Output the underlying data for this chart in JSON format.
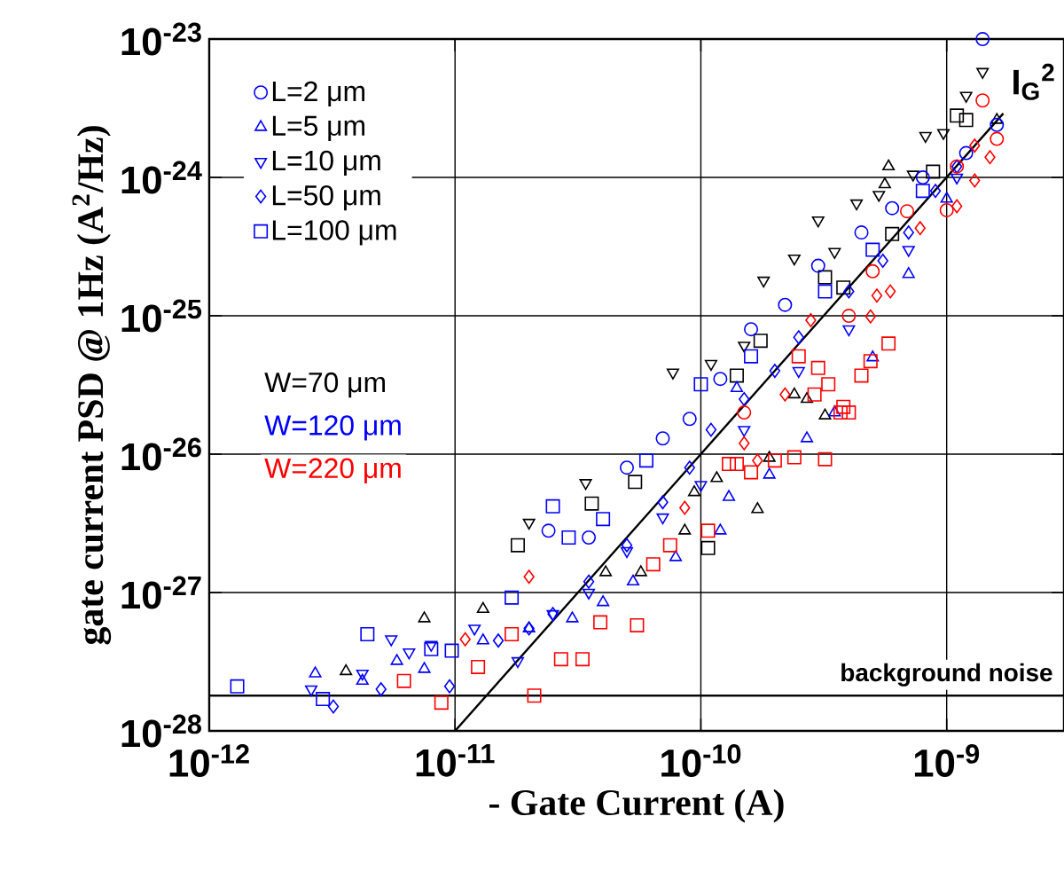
{
  "chart_data": {
    "type": "scatter",
    "xlabel": "- Gate Current (A)",
    "ylabel": "gate current PSD @ 1Hz (A$^{2}$/Hz)",
    "log": "xy",
    "grid": true,
    "legend": "top left",
    "xlim": [
      1e-12,
      3e-09
    ],
    "ylim": [
      1e-28,
      1e-23
    ],
    "xticks": [
      {
        "value": 1e-12,
        "label": "10$^{-12}$"
      },
      {
        "value": 1e-11,
        "label": "10$^{-11}$"
      },
      {
        "value": 1e-10,
        "label": "10$^{-10}$"
      },
      {
        "value": 1e-09,
        "label": "10$^{-9}$"
      }
    ],
    "yticks": [
      {
        "value": 1e-28,
        "label": "10$^{-28}$"
      },
      {
        "value": 1e-27,
        "label": "10$^{-27}$"
      },
      {
        "value": 1e-26,
        "label": "10$^{-26}$"
      },
      {
        "value": 1e-25,
        "label": "10$^{-25}$"
      },
      {
        "value": 1e-24,
        "label": "10$^{-24}$"
      },
      {
        "value": 1e-23,
        "label": "10$^{-23}$"
      }
    ],
    "annotations": [
      "W=70 μm",
      "W=120 μm",
      "W=220 μm",
      "I$_{G}$$^{2}$"
    ],
    "ref_lines": [
      {
        "axis": "y",
        "value": 1.8e-28,
        "label": "background noise",
        "color": "#000000",
        "line_style": "solid"
      }
    ],
    "series": [
      {
        "color": "#000000",
        "marker": "triangle-down",
        "x": [
          2e-11,
          3.4e-11,
          7.7e-11,
          1.1e-10,
          1.5e-10,
          1.8e-10,
          2.4e-10,
          3e-10,
          3.5e-10,
          4.3e-10,
          5.3e-10,
          7.3e-10,
          8.2e-10,
          9.7e-10,
          1.2e-09,
          1.4e-09
        ],
        "values": [
          3.2e-27,
          6.2e-27,
          3.9e-26,
          4.5e-26,
          6.1e-26,
          1.8e-25,
          2.6e-25,
          4.9e-25,
          2.9e-25,
          6.5e-25,
          7.5e-25,
          1.05e-24,
          2e-24,
          2.1e-24,
          3.9e-24,
          5.8e-24
        ]
      },
      {
        "color": "#000000",
        "marker": "square",
        "x": [
          1.8e-11,
          3.6e-11,
          5.4e-11,
          1.07e-10,
          1.4e-10,
          1.75e-10,
          3.2e-10,
          3.8e-10,
          6e-10,
          8.8e-10,
          1.1e-09,
          1.2e-09
        ],
        "values": [
          2.2e-27,
          4.4e-27,
          6.3e-27,
          2.1e-27,
          3.7e-26,
          6.6e-26,
          1.9e-25,
          1.6e-25,
          3.9e-25,
          1.1e-24,
          2.8e-24,
          2.6e-24
        ]
      },
      {
        "color": "#000000",
        "marker": "triangle",
        "x": [
          3.6e-12,
          7.5e-12,
          1.3e-11,
          4.1e-11,
          5.7e-11,
          8.6e-11,
          9.4e-11,
          1.16e-10,
          1.7e-10,
          1.9e-10,
          2.4e-10,
          2.7e-10,
          3.2e-10,
          5.6e-10,
          5.8e-10,
          1.6e-09
        ],
        "values": [
          2.7e-28,
          6.5e-28,
          7.6e-28,
          1.4e-27,
          1.4e-27,
          2.8e-27,
          5.3e-27,
          6.7e-27,
          4e-27,
          9.4e-27,
          2.7e-26,
          2.5e-26,
          1.9e-26,
          8.9e-25,
          1.2e-24,
          2.6e-24
        ]
      },
      {
        "name": "L=2 μm",
        "color": "#0000ff",
        "marker": "circle",
        "x": [
          2.4e-11,
          3.5e-11,
          5e-11,
          7e-11,
          9e-11,
          1.2e-10,
          1.6e-10,
          2.2e-10,
          3e-10,
          4.5e-10,
          6e-10,
          8e-10,
          1.2e-09,
          1.4e-09,
          1.6e-09
        ],
        "values": [
          2.8e-27,
          2.5e-27,
          8e-27,
          1.3e-26,
          1.8e-26,
          3.5e-26,
          8e-26,
          1.2e-25,
          2.3e-25,
          4e-25,
          6e-25,
          1e-24,
          1.5e-24,
          1e-23,
          2.4e-24
        ]
      },
      {
        "name": "L=5 μm",
        "color": "#0000ff",
        "marker": "triangle",
        "x": [
          2.7e-12,
          4.2e-12,
          5.8e-12,
          7.5e-12,
          1.3e-11,
          2e-11,
          3e-11,
          4e-11,
          5.3e-11,
          7.9e-11,
          1.2e-10,
          1.3e-10,
          1.9e-10,
          1.4e-10,
          2.7e-10,
          3.5e-10,
          5e-10,
          7e-10,
          1e-09
        ],
        "values": [
          2.6e-28,
          2.3e-28,
          3.2e-28,
          2.8e-28,
          4.5e-28,
          5.5e-28,
          6.5e-28,
          8.5e-28,
          1.2e-27,
          1.8e-27,
          2.8e-27,
          4.9e-27,
          7.1e-27,
          3e-26,
          1.3e-26,
          2e-26,
          5e-26,
          2e-25,
          7e-25
        ]
      },
      {
        "name": "L=10 μm",
        "color": "#0000ff",
        "marker": "triangle-down",
        "x": [
          2.6e-12,
          4.2e-12,
          5.5e-12,
          6.5e-12,
          8e-12,
          1.2e-11,
          1.8e-11,
          2.5e-11,
          3.5e-11,
          5e-11,
          7e-11,
          1e-10,
          1.5e-10,
          2.5e-10,
          4e-10,
          7e-10,
          1.1e-09
        ],
        "values": [
          2e-28,
          2.6e-28,
          4.6e-28,
          3.7e-28,
          4.2e-28,
          5.5e-28,
          3.2e-28,
          7e-28,
          1e-27,
          2e-27,
          3.5e-27,
          6e-27,
          1.5e-26,
          4e-26,
          8e-26,
          3e-25,
          1e-24
        ]
      },
      {
        "name": "L=50 μm",
        "color": "#0000ff",
        "marker": "diamond",
        "x": [
          3.2e-12,
          5e-12,
          9.5e-12,
          1.5e-11,
          2e-11,
          2.5e-11,
          3.5e-11,
          5e-11,
          7e-11,
          9e-11,
          1.1e-10,
          1.5e-10,
          2e-10,
          2.5e-10,
          4e-10,
          5.5e-10,
          7e-10,
          9e-10,
          1.1e-09
        ],
        "values": [
          1.5e-28,
          2e-28,
          2.1e-28,
          4.5e-28,
          5.5e-28,
          7e-28,
          1.2e-27,
          2.2e-27,
          4.5e-27,
          8e-27,
          1.5e-26,
          2.5e-26,
          4e-26,
          7e-26,
          1.5e-25,
          2.5e-25,
          4e-25,
          8e-25,
          1.2e-24
        ]
      },
      {
        "name": "L=100 μm",
        "color": "#0000ff",
        "marker": "square",
        "x": [
          1.3e-12,
          2.9e-12,
          4.4e-12,
          8e-12,
          9.7e-12,
          1.7e-11,
          2.5e-11,
          2.9e-11,
          4e-11,
          6e-11,
          1e-10,
          1.6e-10,
          3.2e-10,
          5e-10,
          8e-10
        ],
        "values": [
          2.1e-28,
          1.7e-28,
          5e-28,
          3.9e-28,
          3.8e-28,
          9.2e-28,
          4.2e-27,
          2.5e-27,
          3.4e-27,
          9e-27,
          3.2e-26,
          5.1e-26,
          1.5e-25,
          3e-25,
          8e-25
        ]
      },
      {
        "color": "#ff0000",
        "marker": "square",
        "x": [
          6.2e-12,
          8.8e-12,
          1.24e-11,
          1.7e-11,
          2.1e-11,
          2.7e-11,
          3.3e-11,
          3.9e-11,
          5.5e-11,
          6.4e-11,
          7.5e-11,
          1.07e-10,
          1.3e-10,
          1.4e-10,
          1.6e-10,
          2e-10,
          2.4e-10,
          3.2e-10,
          2.9e-10,
          3.7e-10,
          4e-10,
          5.8e-10,
          4.9e-10,
          4.5e-10,
          3e-10,
          3.3e-10,
          3.8e-10,
          2.5e-10
        ],
        "values": [
          2.3e-28,
          1.6e-28,
          2.9e-28,
          5e-28,
          1.8e-28,
          3.3e-28,
          3.3e-28,
          6.1e-28,
          5.8e-28,
          1.6e-27,
          2.2e-27,
          2.8e-27,
          8.5e-27,
          8.5e-27,
          7.4e-27,
          9e-27,
          9.5e-27,
          9.2e-27,
          2.7e-26,
          2e-26,
          2e-26,
          6.3e-26,
          4.7e-26,
          3.7e-26,
          4.2e-26,
          3.2e-26,
          2.2e-26,
          5.1e-26
        ]
      },
      {
        "color": "#ff0000",
        "marker": "diamond",
        "x": [
          1.1e-11,
          2e-11,
          8.6e-11,
          1.5e-10,
          1.7e-10,
          2.2e-10,
          2.8e-10,
          4.9e-10,
          5.2e-10,
          5.9e-10,
          7.8e-10,
          1.1e-09,
          1.3e-09,
          1.3e-09,
          1.5e-09
        ],
        "values": [
          4.6e-28,
          1.3e-27,
          4.1e-27,
          1.2e-26,
          9e-27,
          2.7e-26,
          9.3e-26,
          9.9e-26,
          1.4e-25,
          1.5e-25,
          4.3e-25,
          6.2e-25,
          9.5e-25,
          1.7e-24,
          1.4e-24
        ]
      },
      {
        "color": "#ff0000",
        "marker": "circle",
        "x": [
          1.5e-10,
          4e-10,
          5e-10,
          6.9e-10,
          1e-09,
          1.1e-09,
          1.4e-09,
          1.6e-09
        ],
        "values": [
          2e-26,
          1e-25,
          2.1e-25,
          5.7e-25,
          5.8e-25,
          1.2e-24,
          3.6e-24,
          1.9e-24
        ]
      },
      {
        "type": "line",
        "color": "#000000",
        "marker": "none",
        "line_style": "solid",
        "x": [
          1e-11,
          1.7e-09
        ],
        "values": [
          1e-28,
          2.9e-24
        ]
      }
    ]
  }
}
